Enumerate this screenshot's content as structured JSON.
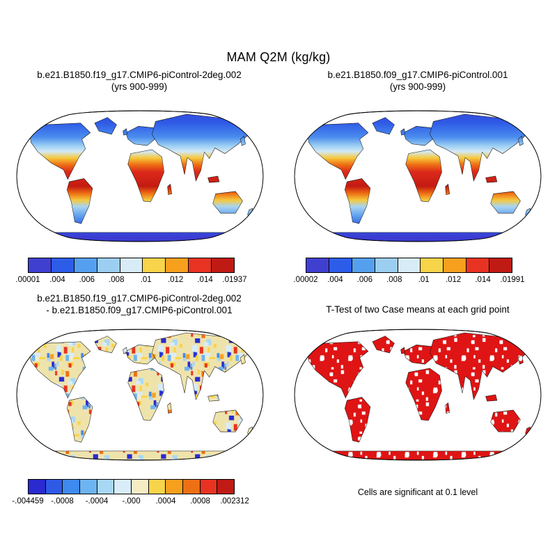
{
  "figure": {
    "title": "MAM Q2M (kg/kg)"
  },
  "panels": [
    {
      "title_line1": "b.e21.B1850.f19_g17.CMIP6-piControl-2deg.002",
      "title_line2": "(yrs 900-999)",
      "colorbar": {
        "labels": [
          ".00001",
          ".004",
          ".006",
          ".008",
          ".01",
          ".012",
          ".014",
          ".01937"
        ],
        "colors": [
          "#4040d0",
          "#2d5ce8",
          "#55a0ee",
          "#9ccef2",
          "#d8ecf8",
          "#f8d44a",
          "#f6a01e",
          "#e83323",
          "#c01a14"
        ]
      }
    },
    {
      "title_line1": "b.e21.B1850.f09_g17.CMIP6-piControl.001",
      "title_line2": "(yrs 900-999)",
      "colorbar": {
        "labels": [
          ".00002",
          ".004",
          ".006",
          ".008",
          ".01",
          ".012",
          ".014",
          ".01991"
        ],
        "colors": [
          "#4040d0",
          "#2d5ce8",
          "#55a0ee",
          "#9ccef2",
          "#d8ecf8",
          "#f8d44a",
          "#f6a01e",
          "#e83323",
          "#c01a14"
        ]
      }
    },
    {
      "title_line1": "b.e21.B1850.f19_g17.CMIP6-piControl-2deg.002",
      "title_line2": "- b.e21.B1850.f09_g17.CMIP6-piControl.001",
      "colorbar": {
        "labels": [
          "-.004459",
          "-.0008",
          "-.0004",
          "-.000",
          ".0004",
          ".0008",
          ".002312"
        ],
        "colors": [
          "#2a2ad0",
          "#2e5ae6",
          "#3f8aee",
          "#6db4f2",
          "#a8d8f6",
          "#d8ecfa",
          "#f6ecc4",
          "#f8d44a",
          "#f6a01e",
          "#ee7014",
          "#e83323",
          "#c01a14"
        ]
      }
    },
    {
      "title_line1": "T-Test of two Case means at each grid point",
      "caption": "Cells are significant at 0.1 level"
    }
  ],
  "map_render": {
    "ocean": "#ffffff",
    "coast": "#101010",
    "outline": "#000000",
    "mean_gradient_stops": [
      [
        0,
        "#3c3cd2"
      ],
      [
        0.13,
        "#2e5ae6"
      ],
      [
        0.23,
        "#4a8cee"
      ],
      [
        0.29,
        "#9ccef2"
      ],
      [
        0.33,
        "#d2e9f7"
      ],
      [
        0.375,
        "#f6c83c"
      ],
      [
        0.42,
        "#ee7014"
      ],
      [
        0.47,
        "#dc2a1a"
      ],
      [
        0.57,
        "#c41a12"
      ],
      [
        0.62,
        "#ee7014"
      ],
      [
        0.665,
        "#f6c83c"
      ],
      [
        0.71,
        "#a8d4f2"
      ],
      [
        0.78,
        "#5a9aee"
      ],
      [
        0.85,
        "#2e5ae6"
      ],
      [
        0.92,
        "#3c3cd2"
      ],
      [
        1,
        "#3c3cd2"
      ]
    ],
    "diff_pattern": {
      "base": "#efe3ac",
      "colors": [
        "#a8d8f6",
        "#d8ecfa",
        "#f8d44a",
        "#f8d44a",
        "#6db4f2",
        "#f6a01e",
        "#2a2ad0",
        "#e83323",
        "#efe3ac",
        "#a8d8f6",
        "#f8d44a",
        "#ee7014",
        "#3f8aee",
        "#d8ecfa",
        "#f6ecc4"
      ],
      "count": 30,
      "min": 2.5,
      "range": 7,
      "seed": 11,
      "tile": 48
    },
    "ttest_pattern": {
      "base": "#df1414",
      "colors": [
        "#ffffff"
      ],
      "count": 12,
      "min": 2,
      "range": 3.5,
      "seed": 5,
      "tile": 40
    }
  },
  "chart_data": [
    {
      "type": "heatmap",
      "projection": "robinson",
      "panel": "top-left",
      "title": "b.e21.B1850.f19_g17.CMIP6-piControl-2deg.002",
      "subtitle": "(yrs 900-999)",
      "variable": "MAM Q2M",
      "units": "kg/kg",
      "min": 1e-05,
      "max": 0.01937,
      "contour_levels": [
        0.004,
        0.006,
        0.008,
        0.01,
        0.012,
        0.014
      ],
      "colorbar_labels": [
        ".00001",
        ".004",
        ".006",
        ".008",
        ".01",
        ".012",
        ".014",
        ".01937"
      ],
      "spatial_pattern": "high 2m specific humidity (red, >0.014) across the tropics, decreasing poleward; dark blue (<0.004) over high northern latitudes and Antarctica; ocean masked white"
    },
    {
      "type": "heatmap",
      "projection": "robinson",
      "panel": "top-right",
      "title": "b.e21.B1850.f09_g17.CMIP6-piControl.001",
      "subtitle": "(yrs 900-999)",
      "variable": "MAM Q2M",
      "units": "kg/kg",
      "min": 2e-05,
      "max": 0.01991,
      "contour_levels": [
        0.004,
        0.006,
        0.008,
        0.01,
        0.012,
        0.014
      ],
      "colorbar_labels": [
        ".00002",
        ".004",
        ".006",
        ".008",
        ".01",
        ".012",
        ".014",
        ".01991"
      ],
      "spatial_pattern": "nearly identical latitudinal pattern to top-left case: red tropics, blue high latitudes, ocean masked white"
    },
    {
      "type": "heatmap",
      "projection": "robinson",
      "panel": "bottom-left",
      "title": "b.e21.B1850.f19_g17.CMIP6-piControl-2deg.002 - b.e21.B1850.f09_g17.CMIP6-piControl.001",
      "variable": "MAM Q2M difference",
      "units": "kg/kg",
      "min": -0.004459,
      "max": 0.002312,
      "contour_levels": [
        -0.0008,
        -0.0006,
        -0.0004,
        -0.0002,
        0,
        0.0002,
        0.0004,
        0.0006,
        0.0008
      ],
      "colorbar_labels": [
        "-.004459",
        "-.0008",
        "-.0004",
        "-.000",
        ".0004",
        ".0008",
        ".002312"
      ],
      "spatial_pattern": "mottled weak differences over land: mix of pale yellow/orange (positive) and light blue (negative) with scattered strong red and dark blue cells, notably over Andes, Africa and central Asia"
    },
    {
      "type": "map",
      "projection": "robinson",
      "panel": "bottom-right",
      "title": "T-Test of two Case means at each grid point",
      "caption": "Cells are significant at 0.1 level",
      "spatial_pattern": "most land grid cells significant (solid red) with scattered non-significant white gaps; ocean masked white"
    }
  ]
}
